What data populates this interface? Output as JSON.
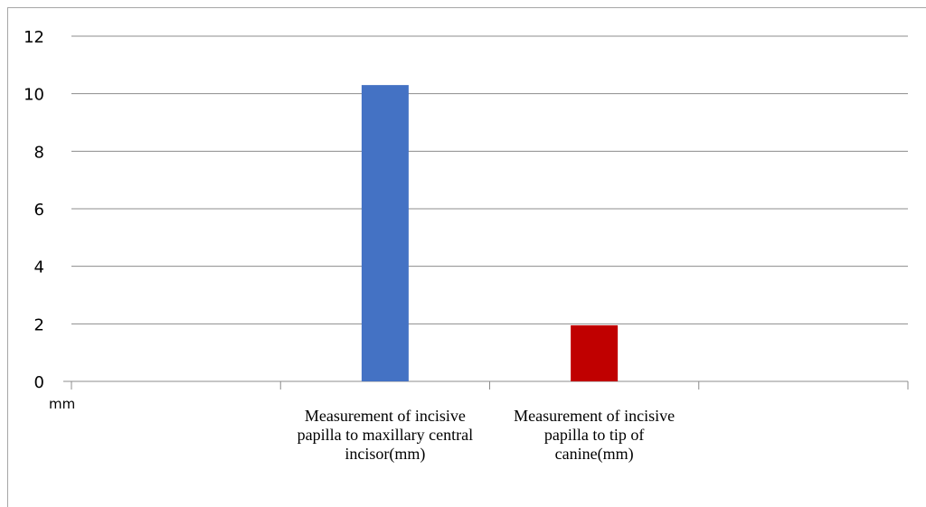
{
  "chart_data": {
    "type": "bar",
    "title": "",
    "xlabel": "",
    "ylabel": "",
    "unit_label": "mm",
    "ylim": [
      0,
      12
    ],
    "y_ticks": [
      0,
      2,
      4,
      6,
      8,
      10,
      12
    ],
    "grid": true,
    "legend": "none",
    "categories": [
      "",
      "Measurement of incisive papilla to maxillary central incisor(mm)",
      "Measurement of incisive papilla to tip of canine(mm)",
      ""
    ],
    "category_label_lines": [
      [],
      [
        "Measurement of incisive",
        "papilla to maxillary central",
        "incisor(mm)"
      ],
      [
        "Measurement of incisive",
        "papilla to tip of",
        "canine(mm)"
      ],
      []
    ],
    "series": [
      {
        "values": [
          null,
          10.3,
          1.95,
          null
        ],
        "colors": [
          null,
          "#4472c4",
          "#c00000",
          null
        ]
      }
    ]
  }
}
